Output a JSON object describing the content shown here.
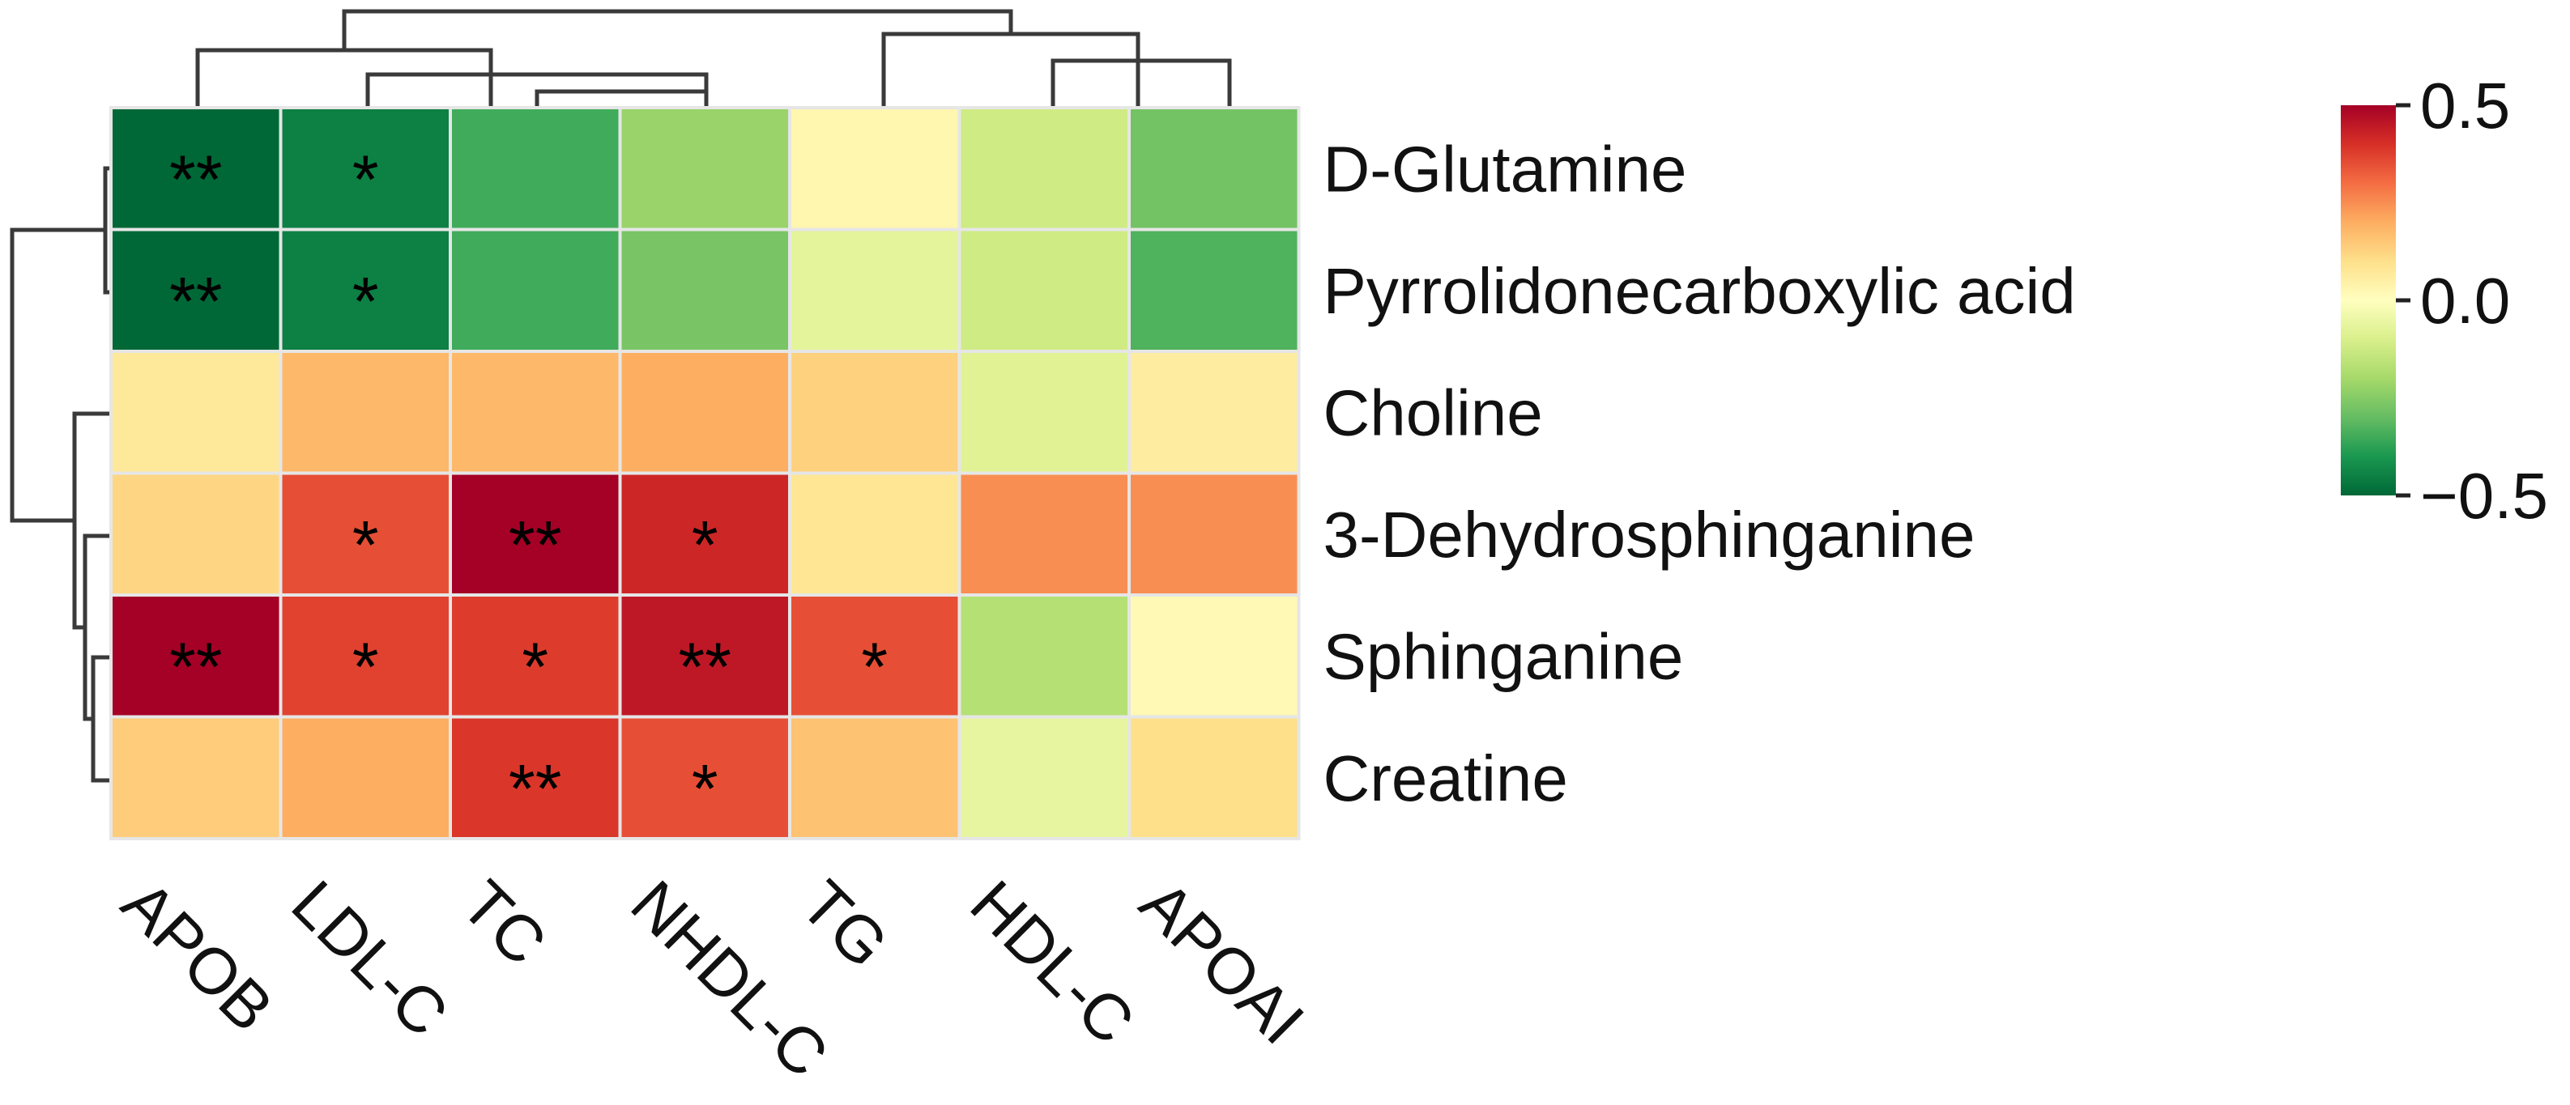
{
  "chart_data": {
    "type": "heatmap",
    "title": "",
    "xlabel": "",
    "ylabel": "",
    "columns": [
      "APOB",
      "LDL-C",
      "TC",
      "NHDL-C",
      "TG",
      "HDL-C",
      "APOAI"
    ],
    "rows": [
      "D-Glutamine",
      "Pyrrolidonecarboxylic acid",
      "Choline",
      "3-Dehydrosphinganine",
      "Sphinganine",
      "Creatine"
    ],
    "values": [
      [
        -0.55,
        -0.45,
        -0.35,
        -0.22,
        0.03,
        -0.12,
        -0.28
      ],
      [
        -0.55,
        -0.45,
        -0.35,
        -0.27,
        -0.07,
        -0.12,
        -0.33
      ],
      [
        0.07,
        0.18,
        0.18,
        0.2,
        0.13,
        -0.08,
        0.06
      ],
      [
        0.12,
        0.35,
        0.5,
        0.42,
        0.08,
        0.25,
        0.25
      ],
      [
        0.5,
        0.37,
        0.38,
        0.45,
        0.35,
        -0.17,
        0.02
      ],
      [
        0.14,
        0.2,
        0.39,
        0.35,
        0.16,
        -0.06,
        0.1
      ]
    ],
    "significance": [
      [
        "**",
        "*",
        "",
        "",
        "",
        "",
        ""
      ],
      [
        "**",
        "*",
        "",
        "",
        "",
        "",
        ""
      ],
      [
        "",
        "",
        "",
        "",
        "",
        "",
        ""
      ],
      [
        "",
        "*",
        "**",
        "*",
        "",
        "",
        ""
      ],
      [
        "**",
        "*",
        "*",
        "**",
        "*",
        "",
        ""
      ],
      [
        "",
        "",
        "**",
        "*",
        "",
        "",
        ""
      ]
    ],
    "colorbar": {
      "min": -0.5,
      "max": 0.5,
      "ticks": [
        0.5,
        0.0,
        -0.5
      ],
      "tick_labels": [
        "0.5",
        "0.0",
        "−0.5"
      ],
      "colormap": "RdYlGn_r",
      "colors": [
        "#006837",
        "#fefebe",
        "#a50026"
      ]
    },
    "row_dendrogram": true,
    "column_dendrogram": true
  }
}
